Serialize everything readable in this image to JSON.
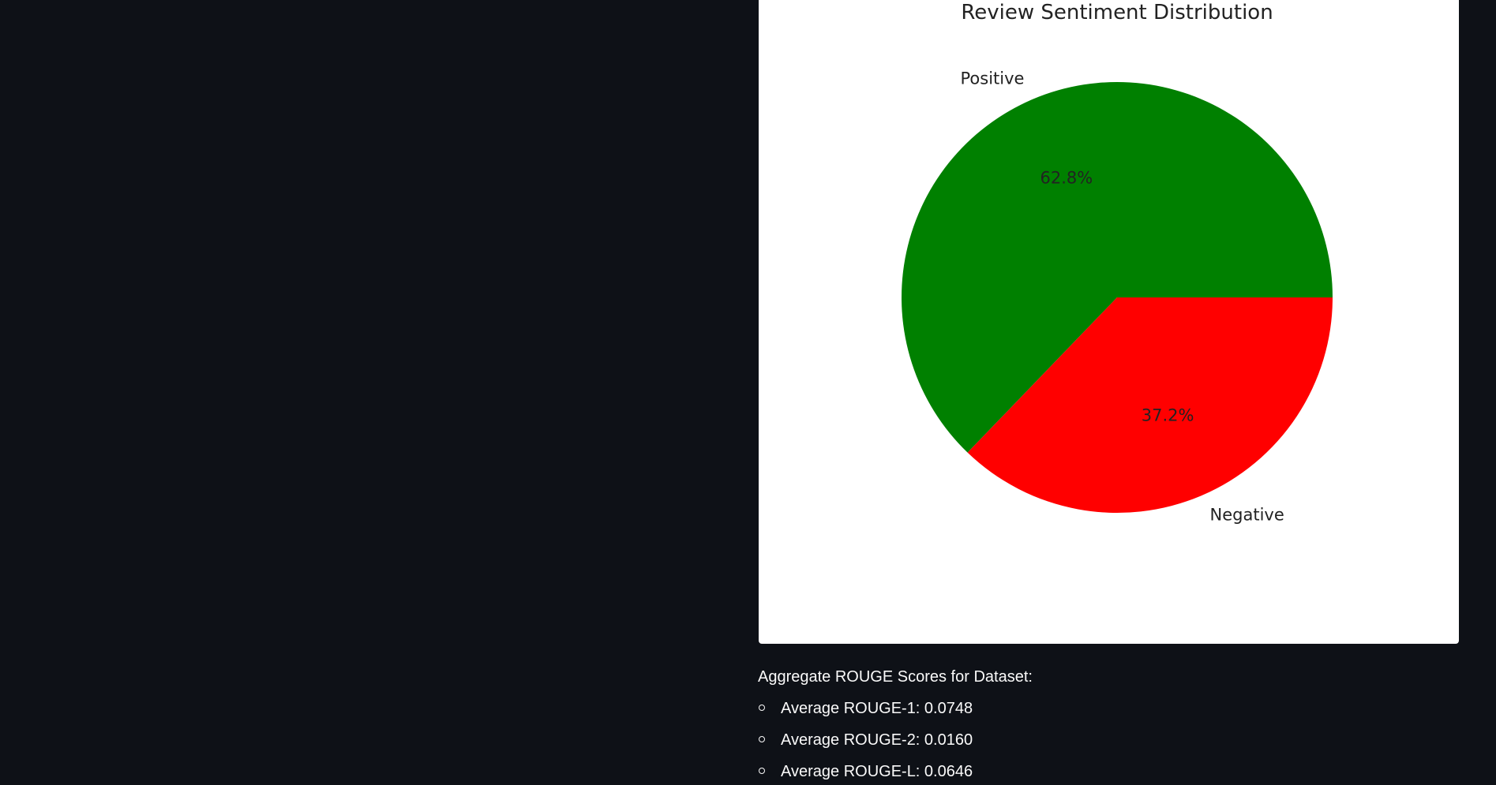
{
  "chart_data": {
    "type": "pie",
    "title": "Review Sentiment Distribution",
    "categories": [
      "Positive",
      "Negative"
    ],
    "values": [
      62.8,
      37.2
    ],
    "value_labels": [
      "62.8%",
      "37.2%"
    ],
    "colors": [
      "#008000",
      "#ff0000"
    ],
    "start_angle_deg": 0,
    "direction": "counterclockwise",
    "legend": "none"
  },
  "rouge": {
    "heading": "Aggregate ROUGE Scores for Dataset:",
    "items": [
      "Average ROUGE-1: 0.0748",
      "Average ROUGE-2: 0.0160",
      "Average ROUGE-L: 0.0646"
    ]
  }
}
